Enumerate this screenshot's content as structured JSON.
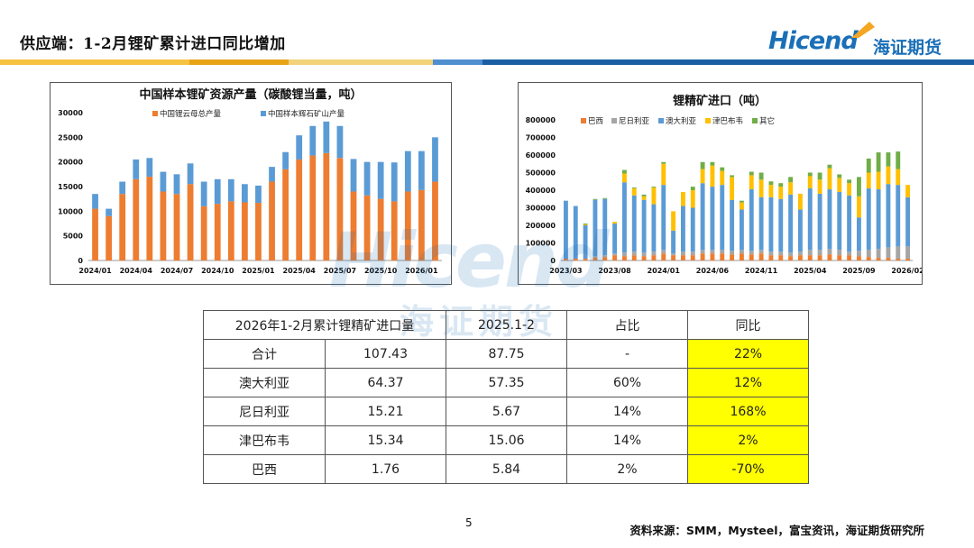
{
  "header": {
    "title": "供应端：1-2月锂矿累计进口同比增加",
    "logo_en": "Hicend",
    "logo_cn": "海证期货"
  },
  "colors": {
    "orange": "#ED7D31",
    "blue": "#5B9BD5",
    "gray": "#A5A5A5",
    "yellow": "#FFC000",
    "green": "#70AD47",
    "highlight": "#FFFF00",
    "brand": "#1A6FB7"
  },
  "chart_data": [
    {
      "type": "bar",
      "stacked": true,
      "title": "中国样本锂矿资源产量（碳酸锂当量，吨）",
      "legend_position": "top",
      "ylim": [
        0,
        30000
      ],
      "yticks": [
        0,
        5000,
        10000,
        15000,
        20000,
        25000,
        30000
      ],
      "x_tick_labels": [
        "2024/01",
        "2024/04",
        "2024/07",
        "2024/10",
        "2025/01",
        "2025/04",
        "2025/07",
        "2025/10",
        "2026/01"
      ],
      "categories": [
        "2024/01",
        "2024/02",
        "2024/03",
        "2024/04",
        "2024/05",
        "2024/06",
        "2024/07",
        "2024/08",
        "2024/09",
        "2024/10",
        "2024/11",
        "2024/12",
        "2025/01",
        "2025/02",
        "2025/03",
        "2025/04",
        "2025/05",
        "2025/06",
        "2025/07",
        "2025/08",
        "2025/09",
        "2025/10",
        "2025/11",
        "2025/12",
        "2026/01",
        "2026/02"
      ],
      "series": [
        {
          "name": "中国锂云母总产量",
          "color": "#ED7D31",
          "values": [
            10500,
            9000,
            13500,
            16500,
            17000,
            14000,
            13500,
            15500,
            11000,
            11500,
            12000,
            11800,
            11700,
            16000,
            18500,
            20500,
            21300,
            21800,
            20800,
            14000,
            13200,
            12500,
            12000,
            14000,
            14300,
            16000
          ]
        },
        {
          "name": "中国样本辉石矿山产量",
          "color": "#5B9BD5",
          "values": [
            3000,
            1500,
            2500,
            4000,
            3800,
            4000,
            4000,
            4200,
            5000,
            5000,
            4500,
            3700,
            3500,
            3000,
            3500,
            4900,
            6000,
            6400,
            6500,
            6600,
            6800,
            7500,
            7900,
            8200,
            7900,
            9000
          ]
        }
      ]
    },
    {
      "type": "bar",
      "stacked": true,
      "title": "锂精矿进口（吨）",
      "legend_position": "top",
      "ylim": [
        0,
        800000
      ],
      "yticks": [
        0,
        100000,
        200000,
        300000,
        400000,
        500000,
        600000,
        700000,
        800000
      ],
      "x_tick_labels": [
        "2023/03",
        "2023/08",
        "2024/01",
        "2024/06",
        "2024/11",
        "2025/04",
        "2025/09",
        "2026/02"
      ],
      "categories": [
        "2023/03",
        "2023/04",
        "2023/05",
        "2023/06",
        "2023/07",
        "2023/08",
        "2023/09",
        "2023/10",
        "2023/11",
        "2023/12",
        "2024/01",
        "2024/02",
        "2024/03",
        "2024/04",
        "2024/05",
        "2024/06",
        "2024/07",
        "2024/08",
        "2024/09",
        "2024/10",
        "2024/11",
        "2024/12",
        "2025/01",
        "2025/02",
        "2025/03",
        "2025/04",
        "2025/05",
        "2025/06",
        "2025/07",
        "2025/08",
        "2025/09",
        "2025/10",
        "2025/11",
        "2025/12",
        "2026/01",
        "2026/02"
      ],
      "series": [
        {
          "name": "巴西",
          "color": "#ED7D31",
          "values": [
            10000,
            10000,
            10000,
            15000,
            20000,
            30000,
            25000,
            30000,
            25000,
            30000,
            40000,
            30000,
            30000,
            30000,
            40000,
            40000,
            40000,
            35000,
            40000,
            35000,
            40000,
            30000,
            30000,
            25000,
            30000,
            30000,
            30000,
            35000,
            30000,
            30000,
            25000,
            20000,
            15000,
            15000,
            10000,
            10000
          ]
        },
        {
          "name": "尼日利亚",
          "color": "#A5A5A5",
          "values": [
            0,
            0,
            0,
            10000,
            10000,
            10000,
            20000,
            20000,
            20000,
            20000,
            20000,
            10000,
            20000,
            20000,
            20000,
            20000,
            20000,
            20000,
            20000,
            20000,
            20000,
            20000,
            20000,
            20000,
            20000,
            30000,
            30000,
            30000,
            30000,
            20000,
            30000,
            40000,
            50000,
            60000,
            70000,
            70000
          ]
        },
        {
          "name": "澳大利亚",
          "color": "#5B9BD5",
          "values": [
            330000,
            300000,
            190000,
            320000,
            320000,
            170000,
            400000,
            320000,
            300000,
            270000,
            370000,
            130000,
            260000,
            250000,
            380000,
            360000,
            370000,
            290000,
            230000,
            350000,
            300000,
            310000,
            300000,
            330000,
            240000,
            350000,
            320000,
            340000,
            330000,
            320000,
            190000,
            350000,
            340000,
            360000,
            350000,
            280000
          ]
        },
        {
          "name": "津巴布韦",
          "color": "#FFC000",
          "values": [
            0,
            0,
            5000,
            0,
            0,
            10000,
            50000,
            40000,
            20000,
            95000,
            120000,
            110000,
            80000,
            100000,
            80000,
            120000,
            80000,
            130000,
            40000,
            80000,
            100000,
            70000,
            70000,
            70000,
            90000,
            70000,
            80000,
            120000,
            80000,
            70000,
            120000,
            90000,
            100000,
            100000,
            90000,
            70000
          ]
        },
        {
          "name": "其它",
          "color": "#70AD47",
          "values": [
            0,
            0,
            5000,
            5000,
            5000,
            0,
            20000,
            5000,
            10000,
            5000,
            10000,
            0,
            0,
            20000,
            40000,
            20000,
            20000,
            10000,
            10000,
            20000,
            40000,
            20000,
            20000,
            30000,
            0,
            20000,
            40000,
            20000,
            20000,
            20000,
            110000,
            80000,
            110000,
            80000,
            100000,
            0
          ]
        }
      ]
    }
  ],
  "table": {
    "header": [
      "2026年1-2月累计锂精矿进口量",
      "",
      "2025.1-2",
      "占比",
      "同比"
    ],
    "rows": [
      [
        "合计",
        "107.43",
        "87.75",
        "-",
        "22%"
      ],
      [
        "澳大利亚",
        "64.37",
        "57.35",
        "60%",
        "12%"
      ],
      [
        "尼日利亚",
        "15.21",
        "5.67",
        "14%",
        "168%"
      ],
      [
        "津巴布韦",
        "15.34",
        "15.06",
        "14%",
        "2%"
      ],
      [
        "巴西",
        "1.76",
        "5.84",
        "2%",
        "-70%"
      ]
    ]
  },
  "footer": {
    "page_number": "5",
    "source": "资料来源：SMM，Mysteel，富宝资讯，海证期货研究所"
  }
}
